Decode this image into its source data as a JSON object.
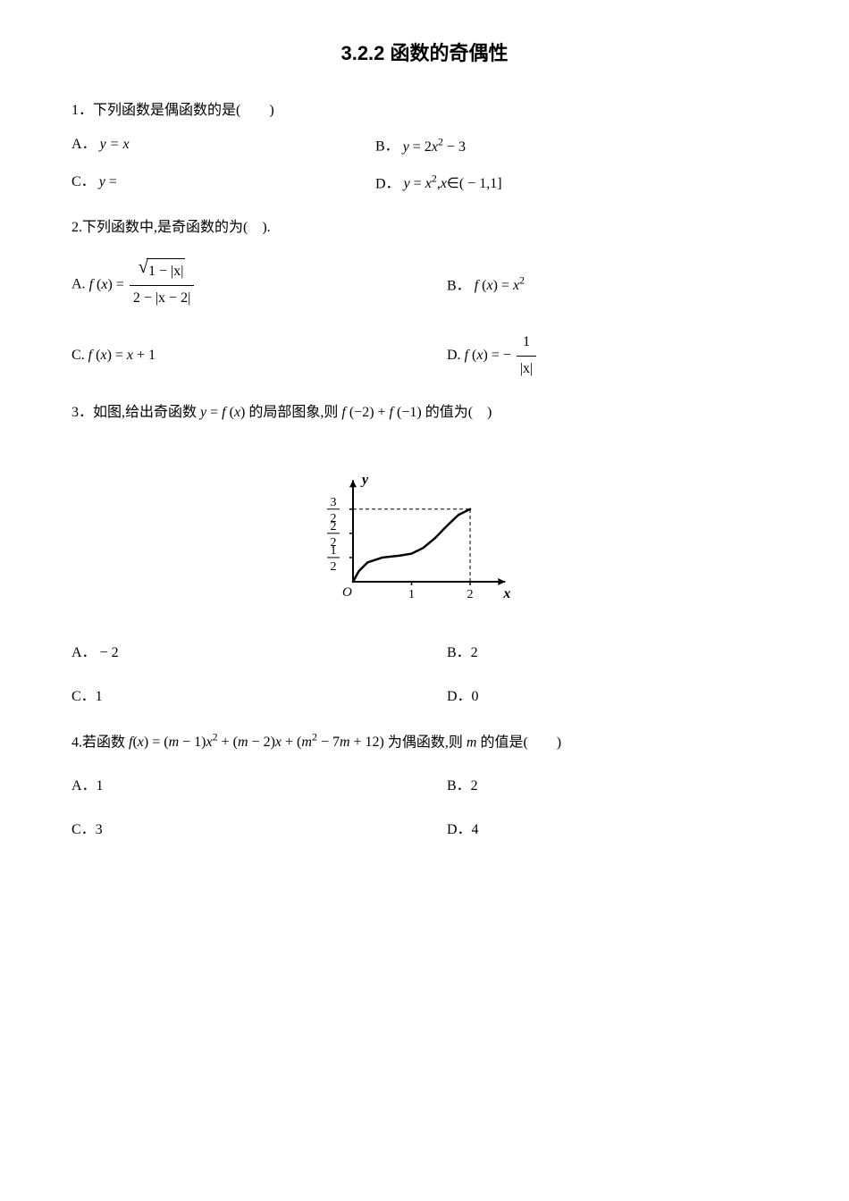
{
  "title": "3.2.2 函数的奇偶性",
  "q1": {
    "stem": "1．下列函数是偶函数的是(　　)",
    "A_prefix": "A．",
    "A_math": "y = x",
    "B_prefix": "B．",
    "B_math": "y = 2x² − 3",
    "C_prefix": "C．",
    "C_math": "y =",
    "D_prefix": "D．",
    "D_math": "y = x²,x∈( − 1,1]"
  },
  "q2": {
    "stem": "2.下列函数中,是奇函数的为(　).",
    "A_prefix": "A. ",
    "A_lhs": "f (x) = ",
    "A_num_sqrt_body": "1 − |x|",
    "A_den": "2 − |x − 2|",
    "B_prefix": "B．",
    "B_math": "f (x) = x²",
    "C_prefix": "C. ",
    "C_math": "f (x) = x + 1",
    "D_prefix": "D. ",
    "D_lhs": "f (x) = − ",
    "D_num": "1",
    "D_den": "|x|"
  },
  "q3": {
    "stem_pre": "3．如图,给出奇函数 ",
    "stem_mid1": "y = f (x)",
    "stem_mid2": " 的局部图象,则 ",
    "stem_expr": "f (−2) + f (−1)",
    "stem_post": " 的值为(　)",
    "A_prefix": "A．",
    "A_val": "− 2",
    "B_prefix": "B．2",
    "C_prefix": "C．1",
    "D_prefix": "D．0",
    "graph": {
      "xmin": -0.3,
      "xmax": 2.6,
      "ymin": -0.3,
      "ymax": 2.1,
      "y_label": "y",
      "x_label": "x",
      "o_label": "O",
      "xticks": [
        1,
        2
      ],
      "yticks": [
        0.5,
        1.0,
        1.5
      ],
      "ytick_labels": [
        "1",
        "2",
        "3"
      ],
      "half_label": "2",
      "curve": [
        [
          0,
          0
        ],
        [
          0.1,
          0.22
        ],
        [
          0.25,
          0.4
        ],
        [
          0.5,
          0.5
        ],
        [
          0.8,
          0.54
        ],
        [
          1.0,
          0.58
        ],
        [
          1.2,
          0.7
        ],
        [
          1.4,
          0.9
        ],
        [
          1.6,
          1.15
        ],
        [
          1.8,
          1.38
        ],
        [
          2.0,
          1.5
        ]
      ],
      "axis_color": "#000",
      "curve_color": "#000",
      "grid_dash": "4 3"
    }
  },
  "q4": {
    "stem_pre": "4.若函数 ",
    "stem_math": "f(x) = (m − 1)x² + (m − 2)x + (m² − 7m + 12)",
    "stem_post": "为偶函数,则 m 的值是(　　)",
    "A": "A．1",
    "B": "B．2",
    "C": "C．3",
    "D": "D．4"
  }
}
